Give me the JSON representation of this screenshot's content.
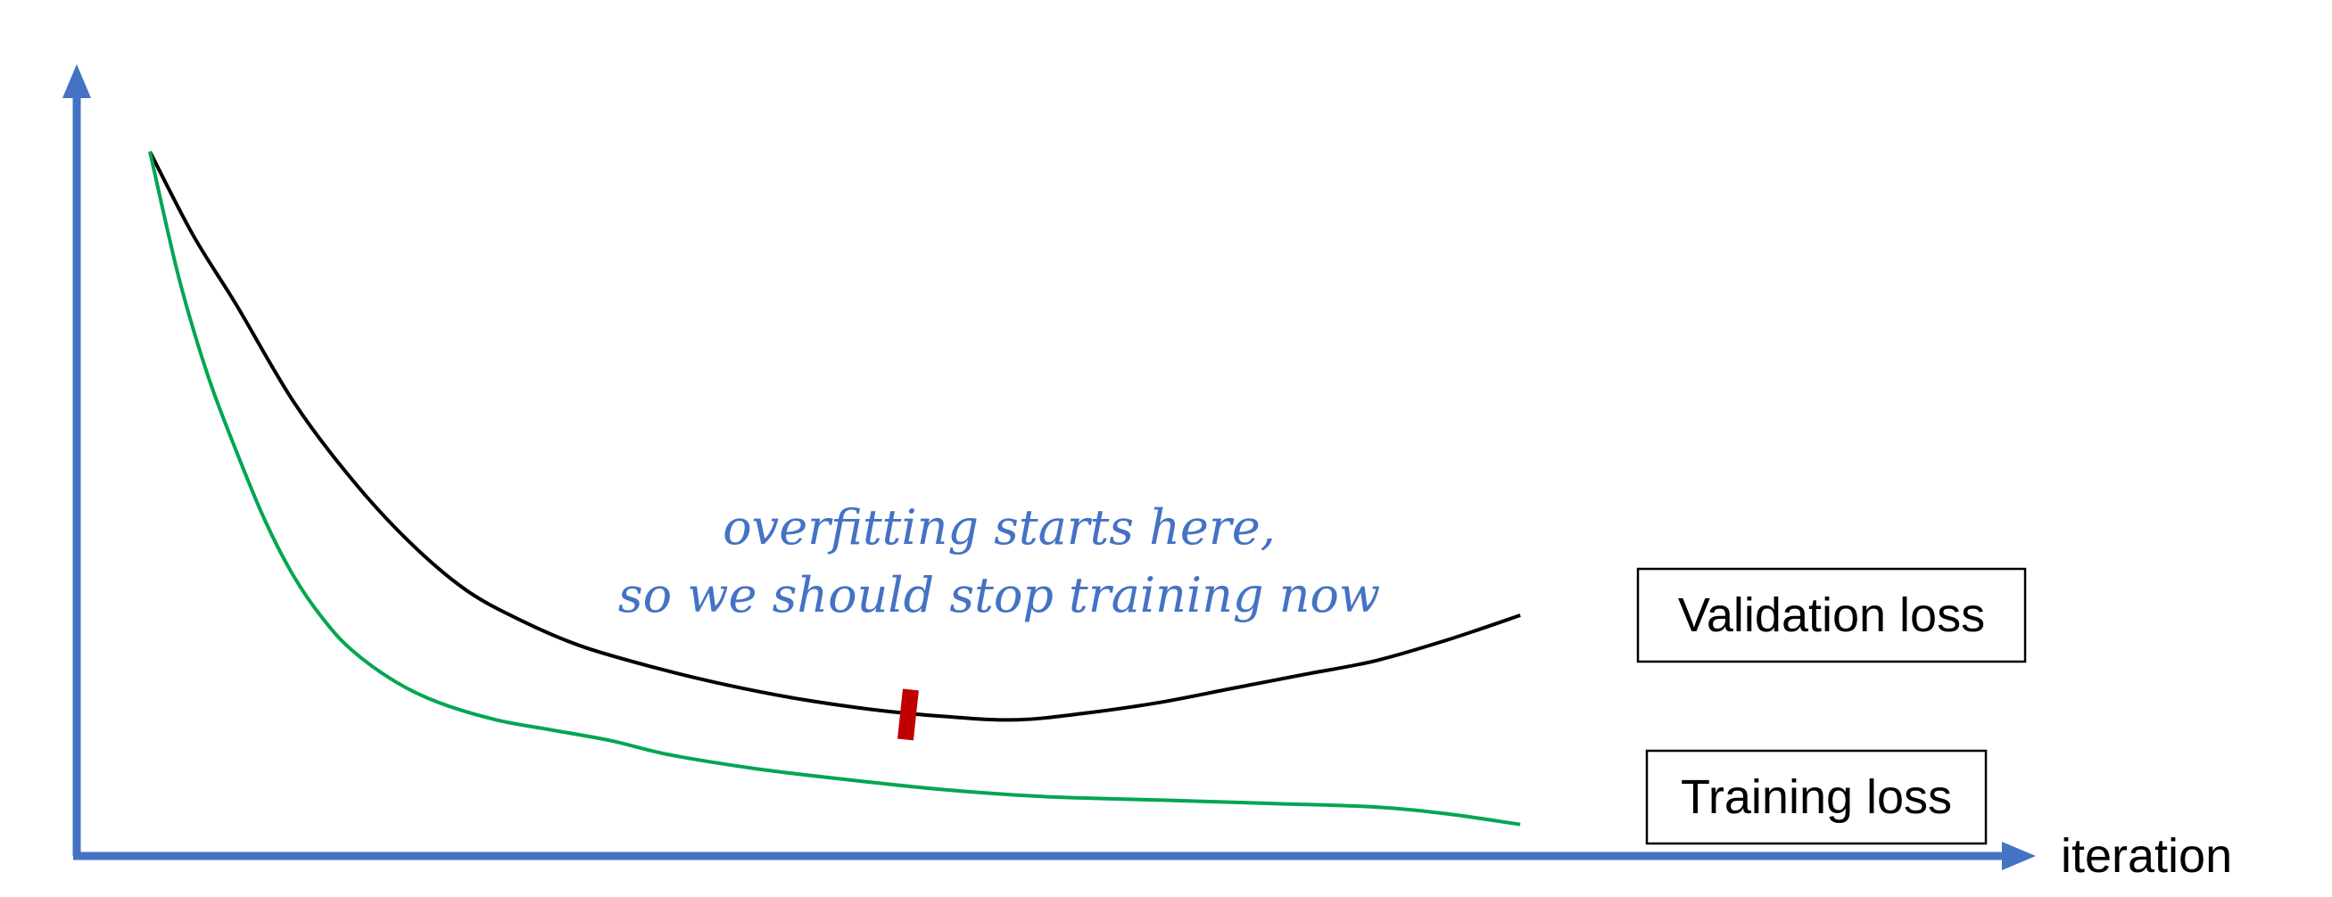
{
  "chart_data": {
    "type": "line",
    "xlabel": "iteration",
    "ylabel": "",
    "xlim": [
      0,
      100
    ],
    "ylim": [
      0,
      100
    ],
    "grid": false,
    "axis_color": "#4472C4",
    "series": [
      {
        "name": "Validation loss",
        "color": "#000000",
        "x": [
          0,
          3,
          6,
          10,
          14,
          18,
          22,
          26,
          30,
          35,
          40,
          45,
          50,
          55,
          60,
          65,
          70,
          75,
          80,
          85,
          90,
          95
        ],
        "y": [
          100,
          88,
          78,
          64,
          53,
          44,
          37,
          32.5,
          29,
          26,
          23.5,
          21.5,
          20,
          19,
          18.5,
          19.5,
          21,
          23,
          25,
          27,
          30,
          33.5
        ]
      },
      {
        "name": "Training loss",
        "color": "#00A651",
        "x": [
          0,
          2,
          4,
          6,
          8,
          10,
          12,
          14,
          17,
          20,
          24,
          28,
          32,
          36,
          42,
          48,
          55,
          62,
          70,
          78,
          85,
          90,
          95
        ],
        "y": [
          100,
          82,
          68,
          57,
          47,
          39,
          33,
          28.5,
          24,
          21,
          18.5,
          17,
          15.5,
          13.5,
          11.5,
          10,
          8.5,
          7.5,
          7,
          6.5,
          6,
          5,
          3.5
        ]
      }
    ],
    "marker": {
      "x": 52.5,
      "y": 19,
      "color": "#C00000"
    },
    "annotation": {
      "lines": [
        "overfitting starts here,",
        "so we should stop training now"
      ],
      "color": "#4472C4"
    }
  }
}
